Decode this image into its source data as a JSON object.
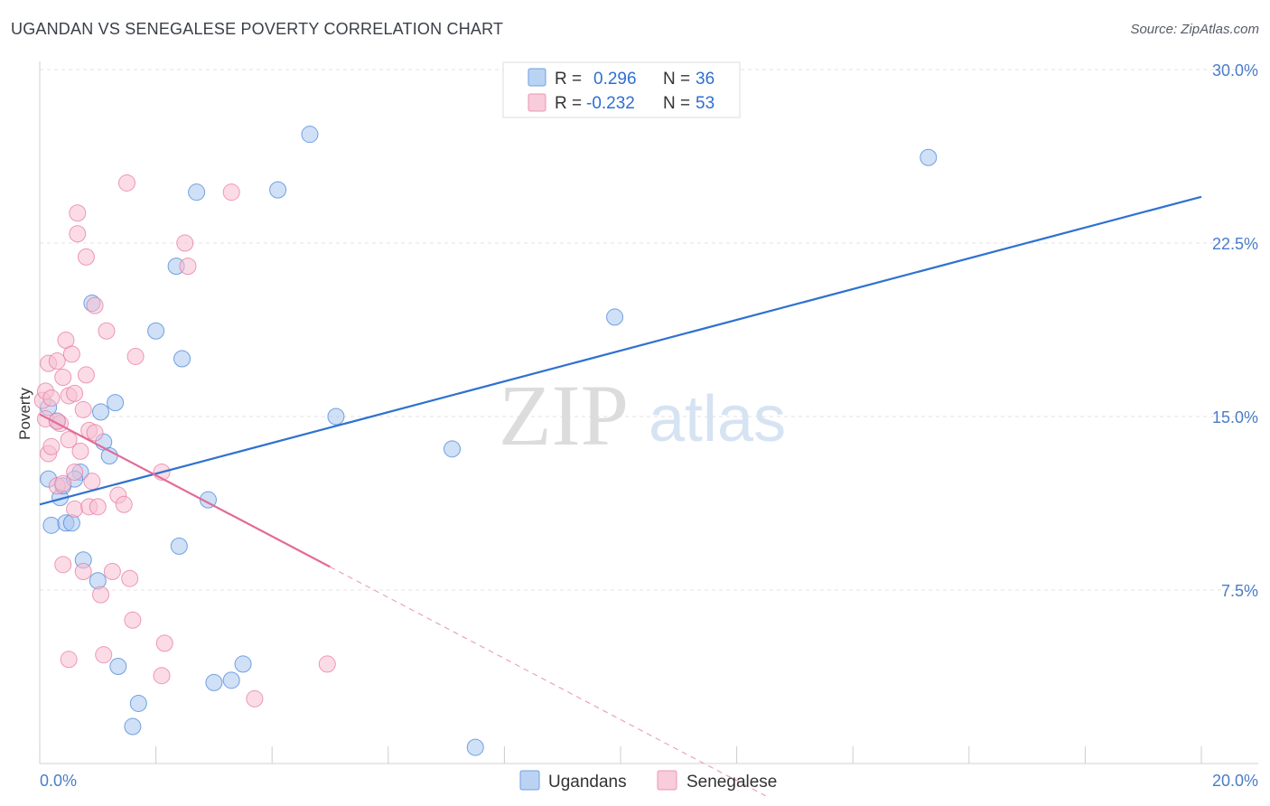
{
  "header": {
    "title": "UGANDAN VS SENEGALESE POVERTY CORRELATION CHART",
    "source": "Source: ZipAtlas.com"
  },
  "watermark": {
    "zip": "ZIP",
    "atlas": "atlas"
  },
  "legend": {
    "rows": [
      {
        "r_label": "R =",
        "r_value": "0.296",
        "n_label": "N =",
        "n_value": "36",
        "color": "#9ec0ee"
      },
      {
        "r_label": "R =",
        "r_value": "-0.232",
        "n_label": "N =",
        "n_value": "53",
        "color": "#f5b6cb"
      }
    ]
  },
  "bottom_legend": {
    "items": [
      {
        "label": "Ugandans",
        "color": "#9ec0ee"
      },
      {
        "label": "Senegalese",
        "color": "#f5b6cb"
      }
    ]
  },
  "chart_data": {
    "type": "scatter",
    "title": "UGANDAN VS SENEGALESE POVERTY CORRELATION CHART",
    "xlabel": "",
    "ylabel": "Poverty",
    "xlim": [
      0,
      20
    ],
    "ylim": [
      0,
      30
    ],
    "x_tick_labels": [
      "0.0%",
      "20.0%"
    ],
    "y_ticks": [
      7.5,
      15.0,
      22.5,
      30.0
    ],
    "y_tick_labels": [
      "7.5%",
      "15.0%",
      "22.5%",
      "30.0%"
    ],
    "grid": true,
    "series": [
      {
        "name": "Ugandans",
        "color": "#4a86d8",
        "fill": "#a8c6f0",
        "points": [
          [
            0.15,
            15.4
          ],
          [
            0.15,
            12.3
          ],
          [
            0.2,
            10.3
          ],
          [
            0.3,
            14.8
          ],
          [
            0.35,
            11.5
          ],
          [
            0.4,
            12.0
          ],
          [
            0.45,
            10.4
          ],
          [
            0.55,
            10.4
          ],
          [
            0.7,
            12.6
          ],
          [
            0.75,
            8.8
          ],
          [
            0.9,
            19.9
          ],
          [
            1.0,
            7.9
          ],
          [
            1.05,
            15.2
          ],
          [
            1.1,
            13.9
          ],
          [
            1.2,
            13.3
          ],
          [
            1.3,
            15.6
          ],
          [
            1.35,
            4.2
          ],
          [
            1.6,
            1.6
          ],
          [
            1.7,
            2.6
          ],
          [
            2.0,
            18.7
          ],
          [
            2.35,
            21.5
          ],
          [
            2.4,
            9.4
          ],
          [
            2.45,
            17.5
          ],
          [
            2.7,
            24.7
          ],
          [
            2.9,
            11.4
          ],
          [
            3.0,
            3.5
          ],
          [
            3.3,
            3.6
          ],
          [
            3.5,
            4.3
          ],
          [
            4.1,
            24.8
          ],
          [
            4.65,
            27.2
          ],
          [
            5.1,
            15.0
          ],
          [
            7.1,
            13.6
          ],
          [
            7.5,
            0.7
          ],
          [
            9.9,
            19.3
          ],
          [
            15.3,
            26.2
          ],
          [
            0.6,
            12.3
          ]
        ],
        "trend": {
          "x": [
            0,
            20
          ],
          "y": [
            11.2,
            24.5
          ]
        }
      },
      {
        "name": "Senegalese",
        "color": "#e87aa0",
        "fill": "#f7bfd2",
        "points": [
          [
            0.05,
            15.7
          ],
          [
            0.1,
            16.1
          ],
          [
            0.1,
            14.9
          ],
          [
            0.15,
            13.4
          ],
          [
            0.15,
            17.3
          ],
          [
            0.2,
            15.8
          ],
          [
            0.2,
            13.7
          ],
          [
            0.3,
            12.0
          ],
          [
            0.3,
            17.4
          ],
          [
            0.35,
            14.7
          ],
          [
            0.4,
            8.6
          ],
          [
            0.4,
            12.1
          ],
          [
            0.4,
            16.7
          ],
          [
            0.45,
            18.3
          ],
          [
            0.5,
            4.5
          ],
          [
            0.5,
            15.9
          ],
          [
            0.5,
            14.0
          ],
          [
            0.55,
            17.7
          ],
          [
            0.6,
            12.6
          ],
          [
            0.6,
            11.0
          ],
          [
            0.65,
            23.8
          ],
          [
            0.65,
            22.9
          ],
          [
            0.7,
            13.5
          ],
          [
            0.75,
            8.3
          ],
          [
            0.75,
            15.3
          ],
          [
            0.8,
            21.9
          ],
          [
            0.8,
            16.8
          ],
          [
            0.85,
            14.4
          ],
          [
            0.85,
            11.1
          ],
          [
            0.9,
            12.2
          ],
          [
            0.95,
            14.3
          ],
          [
            0.95,
            19.8
          ],
          [
            1.0,
            11.1
          ],
          [
            1.05,
            7.3
          ],
          [
            1.1,
            4.7
          ],
          [
            1.15,
            18.7
          ],
          [
            1.25,
            8.3
          ],
          [
            1.35,
            11.6
          ],
          [
            1.45,
            11.2
          ],
          [
            1.5,
            25.1
          ],
          [
            1.55,
            8.0
          ],
          [
            1.6,
            6.2
          ],
          [
            1.65,
            17.6
          ],
          [
            2.1,
            12.6
          ],
          [
            2.1,
            3.8
          ],
          [
            2.15,
            5.2
          ],
          [
            2.5,
            22.5
          ],
          [
            2.55,
            21.5
          ],
          [
            3.3,
            24.7
          ],
          [
            3.7,
            2.8
          ],
          [
            4.95,
            4.3
          ],
          [
            0.6,
            16.0
          ],
          [
            0.3,
            14.8
          ]
        ],
        "trend": {
          "x": [
            0,
            5.0
          ],
          "y": [
            15.1,
            8.5
          ]
        },
        "trend_dashed": {
          "x": [
            5.0,
            12.5
          ],
          "y": [
            8.5,
            -1.4
          ]
        }
      }
    ]
  }
}
